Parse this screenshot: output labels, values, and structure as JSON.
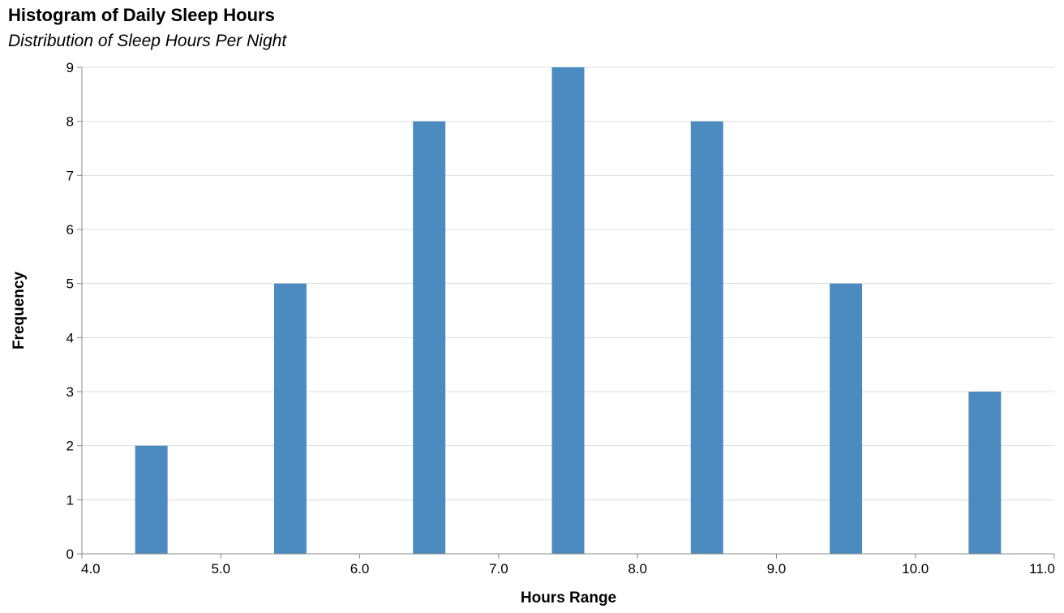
{
  "chart_data": {
    "type": "bar",
    "title": "Histogram of Daily Sleep Hours",
    "subtitle": "Distribution of Sleep Hours Per Night",
    "xlabel": "Hours Range",
    "ylabel": "Frequency",
    "xlim": [
      4.0,
      11.0
    ],
    "ylim": [
      0,
      9
    ],
    "x_ticks": [
      "4.0",
      "5.0",
      "6.0",
      "7.0",
      "8.0",
      "9.0",
      "10.0",
      "11.0"
    ],
    "y_ticks": [
      "0",
      "1",
      "2",
      "3",
      "4",
      "5",
      "6",
      "7",
      "8",
      "9"
    ],
    "bins": [
      {
        "x": 4.5,
        "value": 2
      },
      {
        "x": 5.5,
        "value": 5
      },
      {
        "x": 6.5,
        "value": 8
      },
      {
        "x": 7.5,
        "value": 9
      },
      {
        "x": 8.5,
        "value": 8
      },
      {
        "x": 9.5,
        "value": 5
      },
      {
        "x": 10.5,
        "value": 3
      }
    ],
    "bar_color": "#4c8bc0",
    "grid": true
  }
}
